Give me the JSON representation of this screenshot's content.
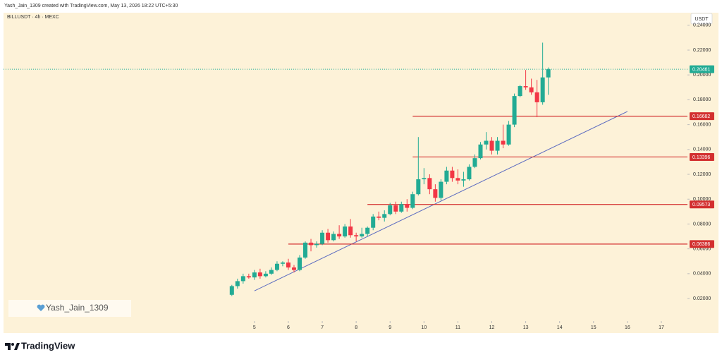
{
  "header": "Yash_Jain_1309 created with TradingView.com, May 13, 2026 18:22 UTC+5:30",
  "watermark": "Yash_Jain_1309",
  "brand": "TradingView",
  "chart_data": {
    "type": "candlestick",
    "title": "BILLUSDT · 4h · MEXC",
    "currency": "USDT",
    "up_color": "#22ab94",
    "down_color": "#f23645",
    "x": [
      4.3333,
      4.5,
      4.6667,
      4.8333,
      5,
      5.1667,
      5.3333,
      5.5,
      5.6667,
      5.8333,
      6,
      6.1667,
      6.3333,
      6.5,
      6.6667,
      6.8333,
      7,
      7.1667,
      7.3333,
      7.5,
      7.6667,
      7.8333,
      8,
      8.1667,
      8.3333,
      8.5,
      8.6667,
      8.8333,
      9,
      9.1667,
      9.3333,
      9.5,
      9.6667,
      9.8333,
      10,
      10.1667,
      10.3333,
      10.5,
      10.6667,
      10.8333,
      11,
      11.1667,
      11.3333,
      11.5,
      11.6667,
      11.8333,
      12,
      12.1667,
      12.3333,
      12.5,
      12.6667,
      12.8333,
      13,
      13.1667,
      13.3333,
      13.5,
      13.6667
    ],
    "open": [
      0.023,
      0.03,
      0.034,
      0.038,
      0.037,
      0.041,
      0.038,
      0.04,
      0.043,
      0.048,
      0.049,
      0.045,
      0.043,
      0.053,
      0.065,
      0.063,
      0.064,
      0.073,
      0.067,
      0.072,
      0.07,
      0.078,
      0.071,
      0.07,
      0.072,
      0.077,
      0.086,
      0.085,
      0.088,
      0.095,
      0.09,
      0.096,
      0.093,
      0.104,
      0.116,
      0.117,
      0.108,
      0.101,
      0.114,
      0.123,
      0.117,
      0.115,
      0.116,
      0.126,
      0.133,
      0.144,
      0.147,
      0.139,
      0.147,
      0.144,
      0.16,
      0.183,
      0.191,
      0.19,
      0.186,
      0.178,
      0.198
    ],
    "high": [
      0.031,
      0.036,
      0.04,
      0.04,
      0.043,
      0.044,
      0.042,
      0.045,
      0.05,
      0.05,
      0.052,
      0.047,
      0.055,
      0.066,
      0.068,
      0.066,
      0.075,
      0.076,
      0.074,
      0.079,
      0.08,
      0.084,
      0.073,
      0.077,
      0.078,
      0.088,
      0.09,
      0.091,
      0.097,
      0.098,
      0.098,
      0.1,
      0.106,
      0.15,
      0.125,
      0.12,
      0.112,
      0.116,
      0.126,
      0.126,
      0.124,
      0.122,
      0.128,
      0.136,
      0.146,
      0.154,
      0.15,
      0.15,
      0.16,
      0.163,
      0.185,
      0.192,
      0.204,
      0.197,
      0.196,
      0.226,
      0.206
    ],
    "low": [
      0.022,
      0.028,
      0.032,
      0.036,
      0.035,
      0.036,
      0.037,
      0.039,
      0.042,
      0.046,
      0.043,
      0.041,
      0.042,
      0.052,
      0.058,
      0.061,
      0.063,
      0.065,
      0.066,
      0.068,
      0.069,
      0.069,
      0.066,
      0.069,
      0.07,
      0.075,
      0.083,
      0.082,
      0.087,
      0.088,
      0.089,
      0.09,
      0.092,
      0.103,
      0.112,
      0.104,
      0.098,
      0.099,
      0.112,
      0.114,
      0.112,
      0.11,
      0.115,
      0.125,
      0.132,
      0.14,
      0.136,
      0.136,
      0.141,
      0.143,
      0.158,
      0.182,
      0.188,
      0.184,
      0.166,
      0.176,
      0.184
    ],
    "close": [
      0.03,
      0.034,
      0.038,
      0.037,
      0.041,
      0.038,
      0.04,
      0.043,
      0.048,
      0.049,
      0.045,
      0.043,
      0.053,
      0.065,
      0.063,
      0.064,
      0.073,
      0.067,
      0.072,
      0.07,
      0.078,
      0.071,
      0.07,
      0.072,
      0.077,
      0.086,
      0.085,
      0.088,
      0.095,
      0.09,
      0.096,
      0.093,
      0.104,
      0.116,
      0.117,
      0.108,
      0.101,
      0.114,
      0.123,
      0.117,
      0.115,
      0.116,
      0.126,
      0.133,
      0.144,
      0.147,
      0.139,
      0.147,
      0.144,
      0.16,
      0.183,
      0.191,
      0.19,
      0.186,
      0.178,
      0.198,
      0.20461
    ],
    "levels": [
      {
        "value": 0.16682,
        "x_start": 9.6667
      },
      {
        "value": 0.13396,
        "x_start": 9.6667
      },
      {
        "value": 0.09573,
        "x_start": 8.3333
      },
      {
        "value": 0.06386,
        "x_start": 6.0
      }
    ],
    "level_color": "#d32f2f",
    "trendline": {
      "x": [
        5,
        16
      ],
      "y": [
        0.0262,
        0.1706
      ],
      "color": "#5c6bc0"
    },
    "xlim": [
      -2.4,
      17.77
    ],
    "ylim": [
      -0.0078,
      0.2501
    ],
    "xticks": [
      5,
      6,
      7,
      8,
      9,
      10,
      11,
      12,
      13,
      14,
      15,
      16,
      17
    ],
    "yticks": [
      {
        "value": 0.02,
        "label": "0.02000"
      },
      {
        "value": 0.04,
        "label": "0.04000"
      },
      {
        "value": 0.06,
        "label": "0.06000"
      },
      {
        "value": 0.08,
        "label": "0.08000"
      },
      {
        "value": 0.1,
        "label": "0.10000"
      },
      {
        "value": 0.12,
        "label": "0.12000"
      },
      {
        "value": 0.14,
        "label": "0.14000"
      },
      {
        "value": 0.16,
        "label": "0.16000"
      },
      {
        "value": 0.18,
        "label": "0.18000"
      },
      {
        "value": 0.2,
        "label": "0.20000"
      },
      {
        "value": 0.22,
        "label": "0.22000"
      },
      {
        "value": 0.24,
        "label": "0.24000"
      }
    ]
  }
}
